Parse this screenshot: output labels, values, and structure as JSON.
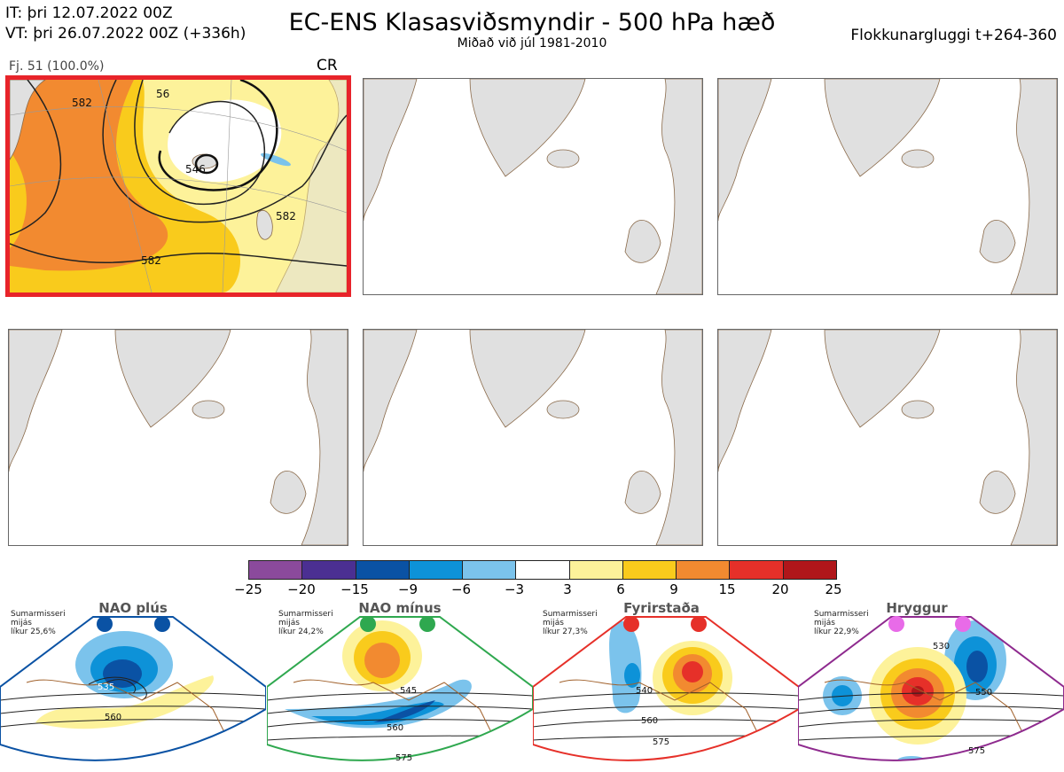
{
  "header": {
    "it_line": "IT: þri 12.07.2022 00Z",
    "vt_line": "VT: þri 26.07.2022 00Z  (+336h)",
    "title": "EC-ENS Klasasviðsmyndir - 500 hPa hæð",
    "subtitle": "Miðað við júl 1981-2010",
    "window": "Flokkunargluggi t+264-360"
  },
  "panels": [
    {
      "label": "Fj. 51 (100.0%)",
      "regime": "CR",
      "active": true,
      "contours": [
        "582",
        "56",
        "546",
        "582",
        "582"
      ]
    },
    {
      "label": "",
      "regime": "",
      "active": false
    },
    {
      "label": "",
      "regime": "",
      "active": false
    },
    {
      "label": "",
      "regime": "",
      "active": false
    },
    {
      "label": "",
      "regime": "",
      "active": false
    },
    {
      "label": "",
      "regime": "",
      "active": false
    }
  ],
  "colorbar": {
    "colors": [
      "#8b4a9c",
      "#4b2f92",
      "#0a52a4",
      "#0d92d8",
      "#7bc3ec",
      "#ffffff",
      "#fdf29a",
      "#f9cb1c",
      "#f28a30",
      "#e63029",
      "#b0161a"
    ],
    "ticks": [
      "−25",
      "−20",
      "−15",
      "−9",
      "−6",
      "−3",
      "3",
      "6",
      "9",
      "15",
      "20",
      "25"
    ]
  },
  "regimes": [
    {
      "name": "NAO plús",
      "season": "Sumarmisseri",
      "line2": "mijás",
      "prob": "líkur 25,6%",
      "color": "#0a52a4",
      "contours": [
        "535",
        "560"
      ]
    },
    {
      "name": "NAO mínus",
      "season": "Sumarmisseri",
      "line2": "mijás",
      "prob": "líkur 24,2%",
      "color": "#2fa84f",
      "contours": [
        "545",
        "560",
        "575"
      ]
    },
    {
      "name": "Fyrirstaða",
      "season": "Sumarmisseri",
      "line2": "mijás",
      "prob": "líkur 27,3%",
      "color": "#e63029",
      "contours": [
        "540",
        "560",
        "575"
      ]
    },
    {
      "name": "Hryggur",
      "season": "Sumarmisseri",
      "line2": "mijás",
      "prob": "líkur 22,9%",
      "color": "#8e2a8e",
      "contours": [
        "530",
        "550",
        "575"
      ]
    }
  ]
}
